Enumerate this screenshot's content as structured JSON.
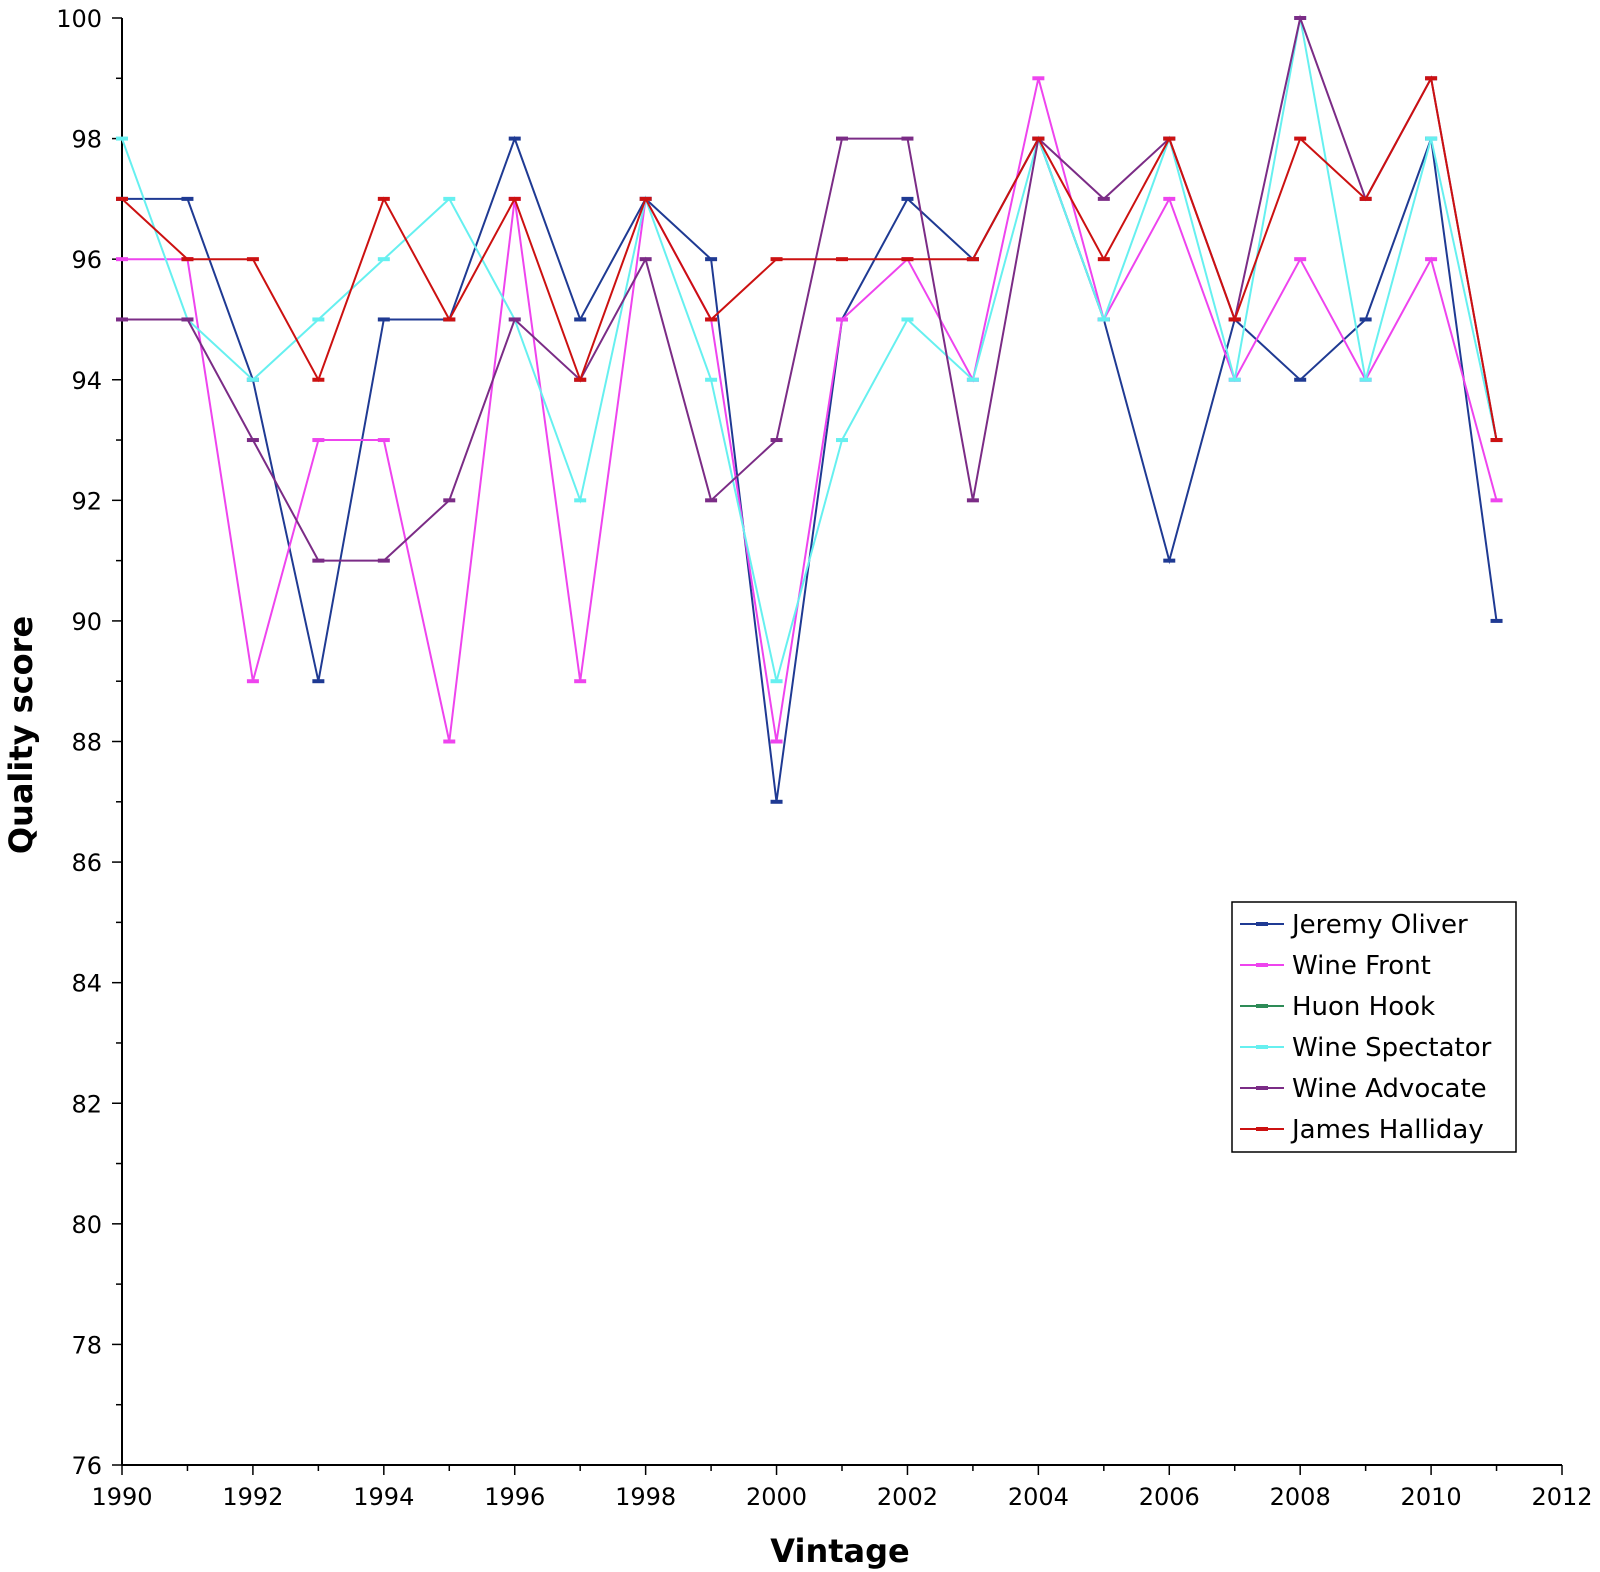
{
  "chart_data": {
    "type": "line",
    "xlabel": "Vintage",
    "ylabel": "Quality score",
    "xlim": [
      1990,
      2012
    ],
    "ylim": [
      76,
      100
    ],
    "x_ticks": [
      "1990",
      "1992",
      "1994",
      "1996",
      "1998",
      "2000",
      "2002",
      "2004",
      "2006",
      "2008",
      "2010",
      "2012"
    ],
    "y_ticks": [
      "76",
      "78",
      "80",
      "82",
      "84",
      "86",
      "88",
      "90",
      "92",
      "94",
      "96",
      "98",
      "100"
    ],
    "grid": false,
    "legend_position": "right",
    "series": [
      {
        "name": "Jeremy Oliver",
        "color": "#1f3a93",
        "points": [
          [
            1990,
            97
          ],
          [
            1991,
            97
          ],
          [
            1992,
            94
          ],
          [
            1993,
            89
          ],
          [
            1994,
            95
          ],
          [
            1995,
            95
          ],
          [
            1996,
            98
          ],
          [
            1997,
            95
          ],
          [
            1998,
            97
          ],
          [
            1999,
            96
          ],
          [
            2000,
            87
          ],
          [
            2001,
            95
          ],
          [
            2002,
            97
          ],
          [
            2003,
            96
          ],
          [
            2004,
            98
          ],
          [
            2005,
            95
          ],
          [
            2006,
            91
          ],
          [
            2007,
            95
          ],
          [
            2008,
            94
          ],
          [
            2009,
            95
          ],
          [
            2010,
            98
          ],
          [
            2011,
            90
          ]
        ]
      },
      {
        "name": "Wine Front",
        "color": "#ee44ee",
        "points": [
          [
            1990,
            96
          ],
          [
            1991,
            96
          ],
          [
            1992,
            89
          ],
          [
            1993,
            93
          ],
          [
            1994,
            93
          ],
          [
            1995,
            88
          ],
          [
            1996,
            97
          ],
          [
            1997,
            89
          ],
          [
            1998,
            97
          ],
          [
            1999,
            95
          ],
          [
            2000,
            88
          ],
          [
            2001,
            95
          ],
          [
            2002,
            96
          ],
          [
            2003,
            94
          ],
          [
            2004,
            99
          ],
          [
            2005,
            95
          ],
          [
            2006,
            97
          ],
          [
            2007,
            94
          ],
          [
            2008,
            96
          ],
          [
            2009,
            94
          ],
          [
            2010,
            96
          ],
          [
            2011,
            92
          ]
        ]
      },
      {
        "name": "Huon Hook",
        "color": "#2e8b57",
        "points": []
      },
      {
        "name": "Wine Spectator",
        "color": "#66f0f0",
        "points": [
          [
            1990,
            98
          ],
          [
            1991,
            95
          ],
          [
            1992,
            94
          ],
          [
            1993,
            95
          ],
          [
            1994,
            96
          ],
          [
            1995,
            97
          ],
          [
            1996,
            95
          ],
          [
            1997,
            92
          ],
          [
            1998,
            97
          ],
          [
            1999,
            94
          ],
          [
            2000,
            89
          ],
          [
            2001,
            93
          ],
          [
            2002,
            95
          ],
          [
            2003,
            94
          ],
          [
            2004,
            98
          ],
          [
            2005,
            95
          ],
          [
            2006,
            98
          ],
          [
            2007,
            94
          ],
          [
            2008,
            100
          ],
          [
            2009,
            94
          ],
          [
            2010,
            98
          ],
          [
            2011,
            93
          ]
        ]
      },
      {
        "name": "Wine Advocate",
        "color": "#7b2c86",
        "points": [
          [
            1990,
            95
          ],
          [
            1991,
            95
          ],
          [
            1992,
            93
          ],
          [
            1993,
            91
          ],
          [
            1994,
            91
          ],
          [
            1995,
            92
          ],
          [
            1996,
            95
          ],
          [
            1997,
            94
          ],
          [
            1998,
            96
          ],
          [
            1999,
            92
          ],
          [
            2000,
            93
          ],
          [
            2001,
            98
          ],
          [
            2002,
            98
          ],
          [
            2003,
            92
          ],
          [
            2004,
            98
          ],
          [
            2005,
            97
          ],
          [
            2006,
            98
          ],
          [
            2007,
            95
          ],
          [
            2008,
            100
          ],
          [
            2009,
            97
          ],
          [
            2010,
            99
          ],
          [
            2011,
            93
          ]
        ]
      },
      {
        "name": "James Halliday",
        "color": "#cc1111",
        "points": [
          [
            1990,
            97
          ],
          [
            1991,
            96
          ],
          [
            1992,
            96
          ],
          [
            1993,
            94
          ],
          [
            1994,
            97
          ],
          [
            1995,
            95
          ],
          [
            1996,
            97
          ],
          [
            1997,
            94
          ],
          [
            1998,
            97
          ],
          [
            1999,
            95
          ],
          [
            2000,
            96
          ],
          [
            2001,
            96
          ],
          [
            2002,
            96
          ],
          [
            2003,
            96
          ],
          [
            2004,
            98
          ],
          [
            2005,
            96
          ],
          [
            2006,
            98
          ],
          [
            2007,
            95
          ],
          [
            2008,
            98
          ],
          [
            2009,
            97
          ],
          [
            2010,
            99
          ],
          [
            2011,
            93
          ]
        ]
      }
    ]
  }
}
